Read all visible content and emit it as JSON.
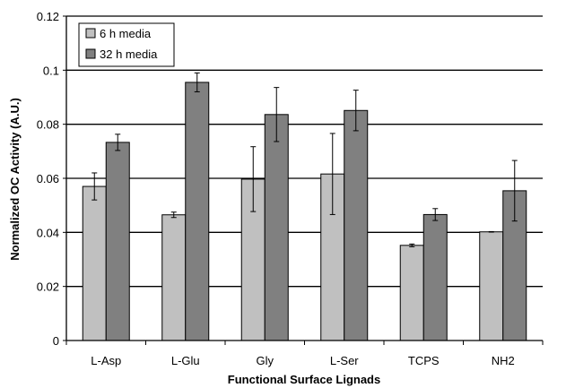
{
  "chart_data": {
    "type": "bar",
    "title": "",
    "xlabel": "Functional Surface Lignads",
    "ylabel": "Normalized OC Activity (A.U.)",
    "categories": [
      "L-Asp",
      "L-Glu",
      "Gly",
      "L-Ser",
      "TCPS",
      "NH2"
    ],
    "ylim": [
      0,
      0.12
    ],
    "yticks": [
      "0",
      "0.02",
      "0.04",
      "0.06",
      "0.08",
      "0.1",
      "0.12"
    ],
    "grid": true,
    "legend_position": "top-left",
    "series": [
      {
        "name": "6 h media",
        "color": "#c0c0c0",
        "values": [
          0.057,
          0.0465,
          0.0597,
          0.0616,
          0.0352,
          0.0402
        ],
        "errors": [
          0.005,
          0.001,
          0.012,
          0.015,
          0.0005,
          0.0001
        ]
      },
      {
        "name": "32 h media",
        "color": "#808080",
        "values": [
          0.0733,
          0.0955,
          0.0836,
          0.0851,
          0.0466,
          0.0554
        ],
        "errors": [
          0.003,
          0.0035,
          0.01,
          0.0075,
          0.0022,
          0.0112
        ]
      }
    ]
  }
}
